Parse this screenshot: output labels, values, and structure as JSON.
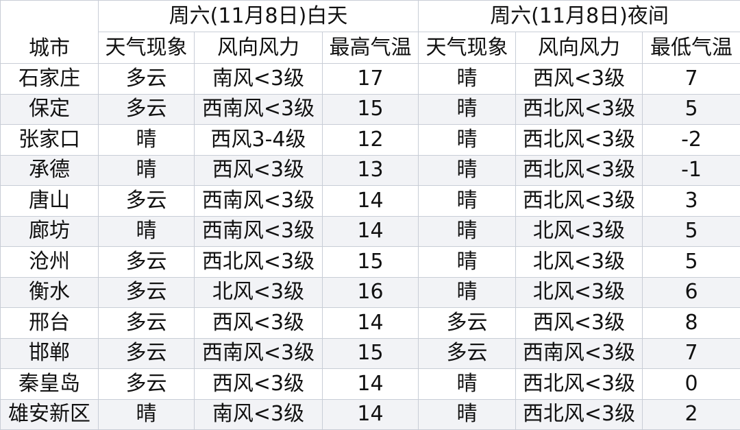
{
  "header": {
    "city": "城市",
    "day_title": "周六(11月8日)白天",
    "night_title": "周六(11月8日)夜间",
    "day_columns": [
      "天气现象",
      "风向风力",
      "最高气温"
    ],
    "night_columns": [
      "天气现象",
      "风向风力",
      "最低气温"
    ]
  },
  "table": {
    "rows": [
      [
        "石家庄",
        "多云",
        "南风<3级",
        17,
        "晴",
        "西风<3级",
        7
      ],
      [
        "保定",
        "多云",
        "西南风<3级",
        15,
        "晴",
        "西北风<3级",
        5
      ],
      [
        "张家口",
        "晴",
        "西风3-4级",
        12,
        "晴",
        "西北风<3级",
        -2
      ],
      [
        "承德",
        "晴",
        "西风<3级",
        13,
        "晴",
        "西北风<3级",
        -1
      ],
      [
        "唐山",
        "多云",
        "西南风<3级",
        14,
        "晴",
        "西北风<3级",
        3
      ],
      [
        "廊坊",
        "晴",
        "西南风<3级",
        14,
        "晴",
        "北风<3级",
        5
      ],
      [
        "沧州",
        "多云",
        "西北风<3级",
        15,
        "晴",
        "北风<3级",
        5
      ],
      [
        "衡水",
        "多云",
        "北风<3级",
        16,
        "晴",
        "北风<3级",
        6
      ],
      [
        "邢台",
        "多云",
        "西风<3级",
        14,
        "多云",
        "西风<3级",
        8
      ],
      [
        "邯郸",
        "多云",
        "西南风<3级",
        15,
        "多云",
        "西南风<3级",
        7
      ],
      [
        "秦皇岛",
        "多云",
        "西风<3级",
        14,
        "晴",
        "西北风<3级",
        0
      ],
      [
        "雄安新区",
        "晴",
        "南风<3级",
        14,
        "晴",
        "西北风<3级",
        2
      ]
    ]
  }
}
